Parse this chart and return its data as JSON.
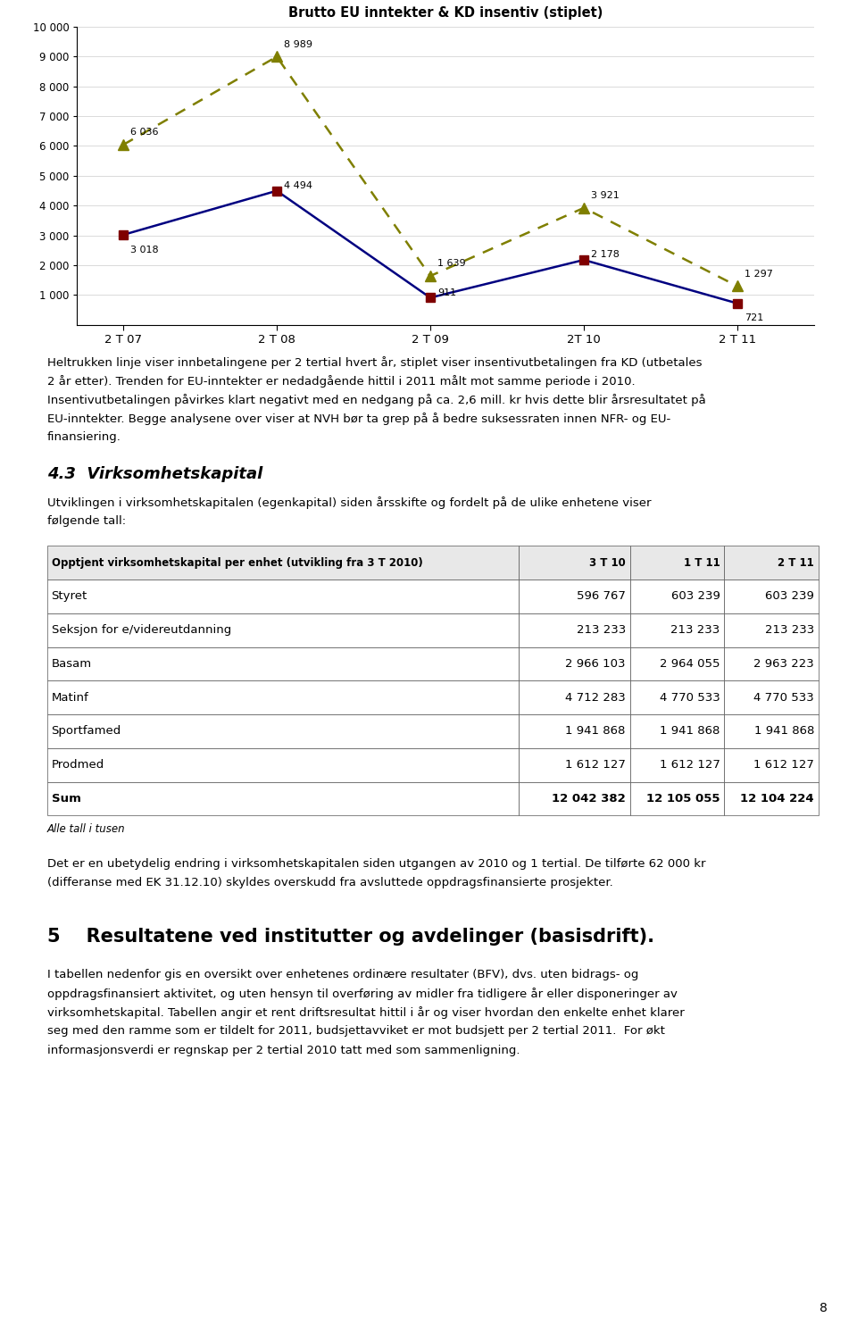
{
  "title": "Brutto EU inntekter & KD insentiv (stiplet)",
  "x_labels": [
    "2 T 07",
    "2 T 08",
    "2 T 09",
    "2T 10",
    "2 T 11"
  ],
  "line1_values": [
    3018,
    4494,
    911,
    2178,
    721
  ],
  "line2_values": [
    6036,
    8989,
    1639,
    3921,
    1297
  ],
  "line1_color": "#000080",
  "line2_color": "#7f7f00",
  "line1_marker": "s",
  "line2_marker": "^",
  "line1_marker_color": "#7f0000",
  "line2_marker_color": "#7f7f00",
  "ylim": [
    0,
    10000
  ],
  "yticks": [
    1000,
    2000,
    3000,
    4000,
    5000,
    6000,
    7000,
    8000,
    9000,
    10000
  ],
  "ytick_labels": [
    "1 000",
    "2 000",
    "3 000",
    "4 000",
    "5 000",
    "6 000",
    "7 000",
    "8 000",
    "9 000",
    "10 000"
  ],
  "para1_lines": [
    "Heltrukken linje viser innbetalingene per 2 tertial hvert år, stiplet viser insentivutbetalingen fra KD (utbetales",
    "2 år etter). Trenden for EU-inntekter er nedadgående hittil i 2011 målt mot samme periode i 2010.",
    "Insentivutbetalingen påvirkes klart negativt med en nedgang på ca. 2,6 mill. kr hvis dette blir årsresultatet på",
    "EU-inntekter. Begge analysene over viser at NVH bør ta grep på å bedre suksessraten innen NFR- og EU-",
    "finansiering."
  ],
  "section_title": "4.3  Virksomhetskapital",
  "section_intro_lines": [
    "Utviklingen i virksomhetskapitalen (egenkapital) siden årsskifte og fordelt på de ulike enhetene viser",
    "følgende tall:"
  ],
  "table_header": [
    "Opptjent virksomhetskapital per enhet (utvikling fra 3 T 2010)",
    "3 T 10",
    "1 T 11",
    "2 T 11"
  ],
  "table_rows": [
    [
      "Styret",
      "596 767",
      "603 239",
      "603 239"
    ],
    [
      "Seksjon for e/videreutdanning",
      "213 233",
      "213 233",
      "213 233"
    ],
    [
      "Basam",
      "2 966 103",
      "2 964 055",
      "2 963 223"
    ],
    [
      "Matinf",
      "4 712 283",
      "4 770 533",
      "4 770 533"
    ],
    [
      "Sportfamed",
      "1 941 868",
      "1 941 868",
      "1 941 868"
    ],
    [
      "Prodmed",
      "1 612 127",
      "1 612 127",
      "1 612 127"
    ],
    [
      "Sum",
      "12 042 382",
      "12 105 055",
      "12 104 224"
    ]
  ],
  "table_note": "Alle tall i tusen",
  "para2_lines": [
    "Det er en ubetydelig endring i virksomhetskapitalen siden utgangen av 2010 og 1 tertial. De tilførte 62 000 kr",
    "(differanse med EK 31.12.10) skyldes overskudd fra avsluttede oppdragsfinansierte prosjekter."
  ],
  "section2_number": "5",
  "section2_title": "Resultatene ved institutter og avdelinger (basisdrift).",
  "para3_lines": [
    "I tabellen nedenfor gis en oversikt over enhetenes ordinære resultater (BFV), dvs. uten bidrags- og",
    "oppdragsfinansiert aktivitet, og uten hensyn til overføring av midler fra tidligere år eller disponeringer av",
    "virksomhetskapital. Tabellen angir et rent driftsresultat hittil i år og viser hvordan den enkelte enhet klarer",
    "seg med den ramme som er tildelt for 2011, budsjettavviket er mot budsjett per 2 tertial 2011.  For økt",
    "informasjonsverdi er regnskap per 2 tertial 2010 tatt med som sammenligning."
  ],
  "page_number": "8",
  "bg_color": "#ffffff",
  "text_color": "#000000"
}
